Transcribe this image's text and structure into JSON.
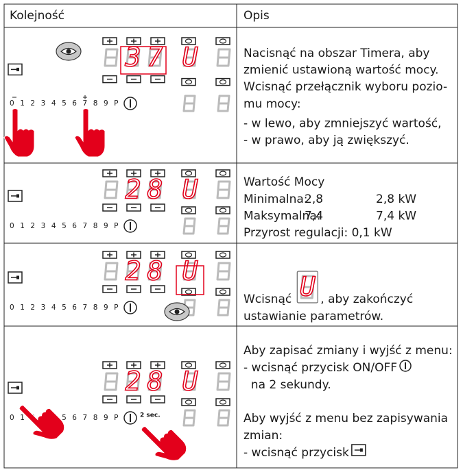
{
  "table": {
    "header": [
      "Kolejność",
      "Opis"
    ],
    "rows": [
      {
        "panel": {
          "digits": [
            "3",
            "7"
          ],
          "mode": "U",
          "scale": "0 1 2 3 4 5 6 7 8 9 P"
        },
        "description": [
          "Nacisnąć na obszar Timera, aby",
          "zmienić ustawioną wartość mocy.",
          "Wcisnąć przełącznik wyboru pozio-",
          "mu mocy:",
          "- w lewo, aby zmniejszyć wartość,",
          "- w prawo, aby ją zwiększyć."
        ]
      },
      {
        "panel": {
          "digits": [
            "2",
            "8"
          ],
          "mode": "U",
          "scale": "0 1 2 3 4 5 6 7 8 9 P"
        },
        "description": [
          "Wartość Mocy"
        ],
        "limits": [
          {
            "label": "Minimalna:",
            "value": "2,8",
            "power": "2,8 kW"
          },
          {
            "label": "Maksymalna:",
            "value": "7,4",
            "power": "7,4 kW"
          }
        ],
        "step": "Przyrost regulacji: 0,1 kW"
      },
      {
        "panel": {
          "digits": [
            "2",
            "8"
          ],
          "mode": "U",
          "scale": "0 1 2 3 4 5 6 7 8 9 P"
        },
        "description": [
          "Wcisnąć",
          ", aby zakończyć",
          "ustawianie parametrów."
        ]
      },
      {
        "panel": {
          "digits": [
            "2",
            "8"
          ],
          "mode": "U",
          "scale": "0 1 2 3 4 5 6 7 8 9 P",
          "hold": "2 sec."
        },
        "description": [
          "Aby zapisać zmiany i wyjść z menu:",
          "- wcisnąć przycisk ON/OFF",
          "  na 2 sekundy.",
          "Aby wyjść z menu bez zapisywania",
          "zmian:",
          "- wcisnąć przycisk"
        ]
      }
    ]
  }
}
